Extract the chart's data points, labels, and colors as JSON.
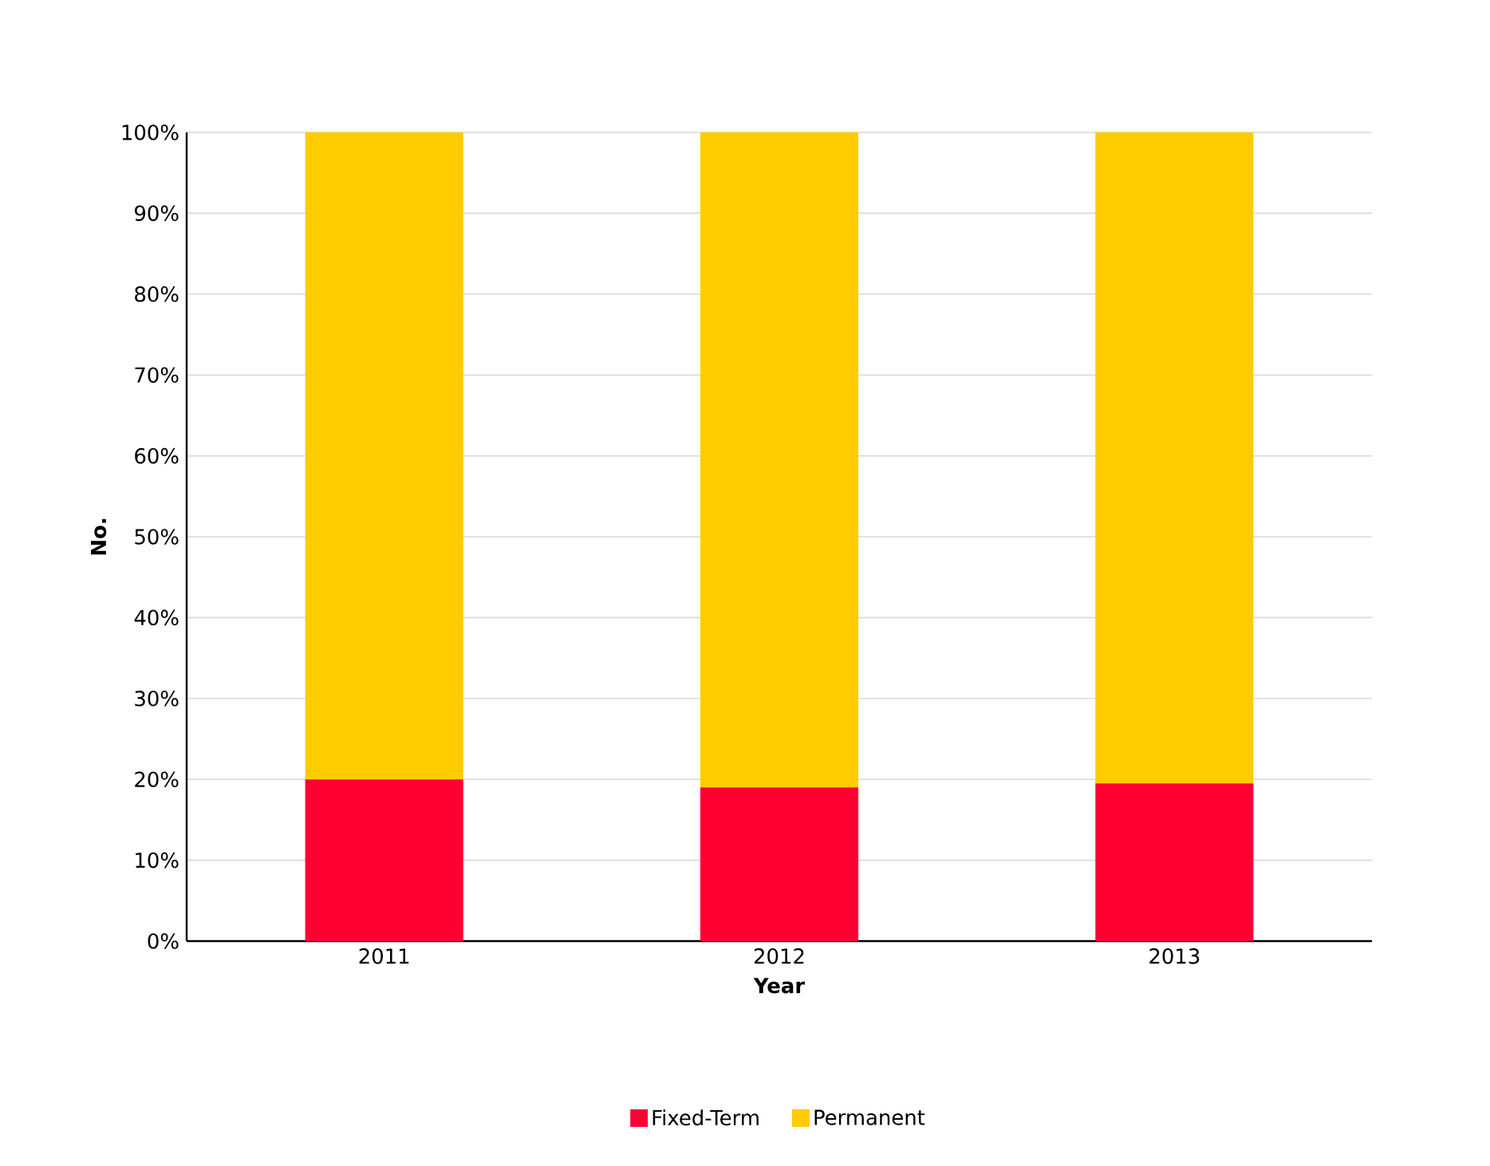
{
  "chart_data": {
    "type": "bar",
    "stacked": true,
    "xlabel": "Year",
    "ylabel": "No.",
    "categories": [
      "2011",
      "2012",
      "2013"
    ],
    "series": [
      {
        "name": "Fixed-Term",
        "color": "#ff0033",
        "values": [
          20,
          19,
          19.5
        ]
      },
      {
        "name": "Permanent",
        "color": "#ffcc00",
        "values": [
          80,
          81,
          80.5
        ]
      }
    ],
    "ylim": [
      0,
      100
    ],
    "yticks": [
      {
        "value": 0,
        "label": "0%"
      },
      {
        "value": 10,
        "label": "10%"
      },
      {
        "value": 20,
        "label": "20%"
      },
      {
        "value": 30,
        "label": "30%"
      },
      {
        "value": 40,
        "label": "40%"
      },
      {
        "value": 50,
        "label": "50%"
      },
      {
        "value": 60,
        "label": "60%"
      },
      {
        "value": 70,
        "label": "70%"
      },
      {
        "value": 80,
        "label": "80%"
      },
      {
        "value": 90,
        "label": "90%"
      },
      {
        "value": 100,
        "label": "100%"
      }
    ],
    "grid": "y",
    "legend": "bottom"
  }
}
